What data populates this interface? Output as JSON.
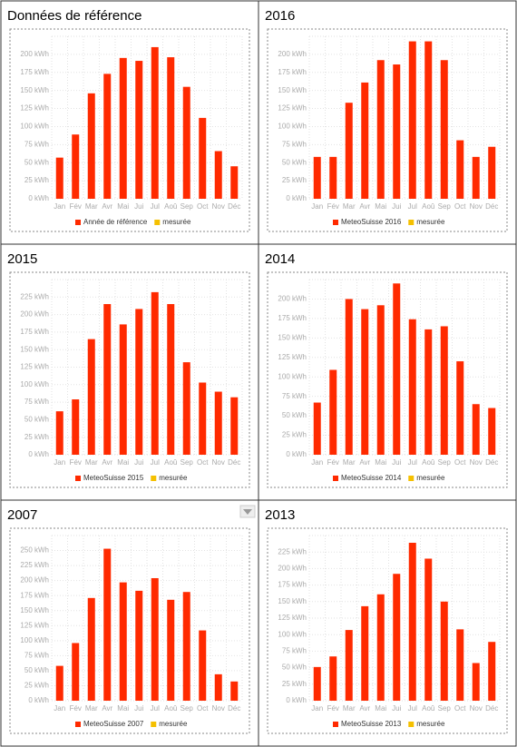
{
  "chart_data": [
    {
      "type": "bar",
      "title": "Données de référence",
      "categories": [
        "Jan",
        "Fév",
        "Mar",
        "Avr",
        "Mai",
        "Jui",
        "Jul",
        "Aoû",
        "Sep",
        "Oct",
        "Nov",
        "Déc"
      ],
      "series": [
        {
          "name": "Année de référence",
          "color": "#ff2a00",
          "values": [
            57,
            89,
            146,
            173,
            195,
            191,
            210,
            196,
            155,
            112,
            66,
            45
          ]
        },
        {
          "name": "mesurée",
          "color": "#f5c000",
          "values": [
            null,
            null,
            null,
            null,
            null,
            null,
            null,
            null,
            null,
            null,
            null,
            null
          ]
        }
      ],
      "ylim": [
        0,
        225
      ],
      "yticks": [
        {
          "value": 0,
          "label": "0 kWh"
        },
        {
          "value": 25,
          "label": "25 kWh"
        },
        {
          "value": 50,
          "label": "50 kWh"
        },
        {
          "value": 75,
          "label": "75 kWh"
        },
        {
          "value": 100,
          "label": "100 kWh"
        },
        {
          "value": 125,
          "label": "125 kWh"
        },
        {
          "value": 150,
          "label": "150 kWh"
        },
        {
          "value": 175,
          "label": "175 kWh"
        },
        {
          "value": 200,
          "label": "200 kWh"
        }
      ],
      "grid": true,
      "legend": "bottom"
    },
    {
      "type": "bar",
      "title": "2016",
      "categories": [
        "Jan",
        "Fév",
        "Mar",
        "Avr",
        "Mai",
        "Jui",
        "Jul",
        "Aoû",
        "Sep",
        "Oct",
        "Nov",
        "Déc"
      ],
      "series": [
        {
          "name": "MeteoSuisse 2016",
          "color": "#ff2a00",
          "values": [
            58,
            58,
            133,
            161,
            192,
            186,
            218,
            218,
            192,
            81,
            58,
            72
          ]
        },
        {
          "name": "mesurée",
          "color": "#f5c000",
          "values": [
            null,
            null,
            null,
            null,
            null,
            null,
            null,
            null,
            null,
            null,
            null,
            null
          ]
        }
      ],
      "ylim": [
        0,
        225
      ],
      "yticks": [
        {
          "value": 0,
          "label": "0 kWh"
        },
        {
          "value": 25,
          "label": "25 kWh"
        },
        {
          "value": 50,
          "label": "50 kWh"
        },
        {
          "value": 75,
          "label": "75 kWh"
        },
        {
          "value": 100,
          "label": "100 kWh"
        },
        {
          "value": 125,
          "label": "125 kWh"
        },
        {
          "value": 150,
          "label": "150 kWh"
        },
        {
          "value": 175,
          "label": "175 kWh"
        },
        {
          "value": 200,
          "label": "200 kWh"
        }
      ],
      "grid": true,
      "legend": "bottom"
    },
    {
      "type": "bar",
      "title": "2015",
      "categories": [
        "Jan",
        "Fév",
        "Mar",
        "Avr",
        "Mai",
        "Jui",
        "Jul",
        "Aoû",
        "Sep",
        "Oct",
        "Nov",
        "Déc"
      ],
      "series": [
        {
          "name": "MeteoSuisse 2015",
          "color": "#ff2a00",
          "values": [
            62,
            79,
            165,
            215,
            186,
            208,
            232,
            215,
            132,
            103,
            90,
            82
          ]
        },
        {
          "name": "mesurée",
          "color": "#f5c000",
          "values": [
            null,
            null,
            null,
            null,
            null,
            null,
            null,
            null,
            null,
            null,
            null,
            null
          ]
        }
      ],
      "ylim": [
        0,
        250
      ],
      "yticks": [
        {
          "value": 0,
          "label": "0 kWh"
        },
        {
          "value": 25,
          "label": "25 kWh"
        },
        {
          "value": 50,
          "label": "50 kWh"
        },
        {
          "value": 75,
          "label": "75 kWh"
        },
        {
          "value": 100,
          "label": "100 kWh"
        },
        {
          "value": 125,
          "label": "125 kWh"
        },
        {
          "value": 150,
          "label": "150 kWh"
        },
        {
          "value": 175,
          "label": "175 kWh"
        },
        {
          "value": 200,
          "label": "200 kWh"
        },
        {
          "value": 225,
          "label": "225 kWh"
        }
      ],
      "grid": true,
      "legend": "bottom"
    },
    {
      "type": "bar",
      "title": "2014",
      "categories": [
        "Jan",
        "Fév",
        "Mar",
        "Avr",
        "Mai",
        "Jui",
        "Jul",
        "Aoû",
        "Sep",
        "Oct",
        "Nov",
        "Déc"
      ],
      "series": [
        {
          "name": "MeteoSuisse 2014",
          "color": "#ff2a00",
          "values": [
            67,
            109,
            200,
            187,
            192,
            220,
            174,
            161,
            165,
            120,
            65,
            60
          ]
        },
        {
          "name": "mesurée",
          "color": "#f5c000",
          "values": [
            null,
            null,
            null,
            null,
            null,
            null,
            null,
            null,
            null,
            null,
            null,
            null
          ]
        }
      ],
      "ylim": [
        0,
        225
      ],
      "yticks": [
        {
          "value": 0,
          "label": "0 kWh"
        },
        {
          "value": 25,
          "label": "25 kWh"
        },
        {
          "value": 50,
          "label": "50 kWh"
        },
        {
          "value": 75,
          "label": "75 kWh"
        },
        {
          "value": 100,
          "label": "100 kWh"
        },
        {
          "value": 125,
          "label": "125 kWh"
        },
        {
          "value": 150,
          "label": "150 kWh"
        },
        {
          "value": 175,
          "label": "175 kWh"
        },
        {
          "value": 200,
          "label": "200 kWh"
        }
      ],
      "grid": true,
      "legend": "bottom"
    },
    {
      "type": "bar",
      "title": "2007",
      "categories": [
        "Jan",
        "Fév",
        "Mar",
        "Avr",
        "Mai",
        "Jui",
        "Jul",
        "Aoû",
        "Sep",
        "Oct",
        "Nov",
        "Déc"
      ],
      "series": [
        {
          "name": "MeteoSuisse 2007",
          "color": "#ff2a00",
          "values": [
            58,
            96,
            171,
            253,
            197,
            183,
            204,
            168,
            181,
            117,
            44,
            32
          ]
        },
        {
          "name": "mesurée",
          "color": "#f5c000",
          "values": [
            null,
            null,
            null,
            null,
            null,
            null,
            null,
            null,
            null,
            null,
            null,
            null
          ]
        }
      ],
      "ylim": [
        0,
        275
      ],
      "yticks": [
        {
          "value": 0,
          "label": "0 kWh"
        },
        {
          "value": 25,
          "label": "25 kWh"
        },
        {
          "value": 50,
          "label": "50 kWh"
        },
        {
          "value": 75,
          "label": "75 kWh"
        },
        {
          "value": 100,
          "label": "100 kWh"
        },
        {
          "value": 125,
          "label": "125 kWh"
        },
        {
          "value": 150,
          "label": "150 kWh"
        },
        {
          "value": 175,
          "label": "175 kWh"
        },
        {
          "value": 200,
          "label": "200 kWh"
        },
        {
          "value": 225,
          "label": "225 kWh"
        },
        {
          "value": 250,
          "label": "250 kWh"
        }
      ],
      "grid": true,
      "legend": "bottom"
    },
    {
      "type": "bar",
      "title": "2013",
      "categories": [
        "Jan",
        "Fév",
        "Mar",
        "Avr",
        "Mai",
        "Jui",
        "Jul",
        "Aoû",
        "Sep",
        "Oct",
        "Nov",
        "Déc"
      ],
      "series": [
        {
          "name": "MeteoSuisse 2013",
          "color": "#ff2a00",
          "values": [
            51,
            67,
            107,
            143,
            161,
            192,
            239,
            215,
            150,
            108,
            57,
            89
          ]
        },
        {
          "name": "mesurée",
          "color": "#f5c000",
          "values": [
            null,
            null,
            null,
            null,
            null,
            null,
            null,
            null,
            null,
            null,
            null,
            null
          ]
        }
      ],
      "ylim": [
        0,
        250
      ],
      "yticks": [
        {
          "value": 0,
          "label": "0 kWh"
        },
        {
          "value": 25,
          "label": "25 kWh"
        },
        {
          "value": 50,
          "label": "50 kWh"
        },
        {
          "value": 75,
          "label": "75 kWh"
        },
        {
          "value": 100,
          "label": "100 kWh"
        },
        {
          "value": 125,
          "label": "125 kWh"
        },
        {
          "value": 150,
          "label": "150 kWh"
        },
        {
          "value": 175,
          "label": "175 kWh"
        },
        {
          "value": 200,
          "label": "200 kWh"
        },
        {
          "value": 225,
          "label": "225 kWh"
        }
      ],
      "grid": true,
      "legend": "bottom"
    }
  ]
}
